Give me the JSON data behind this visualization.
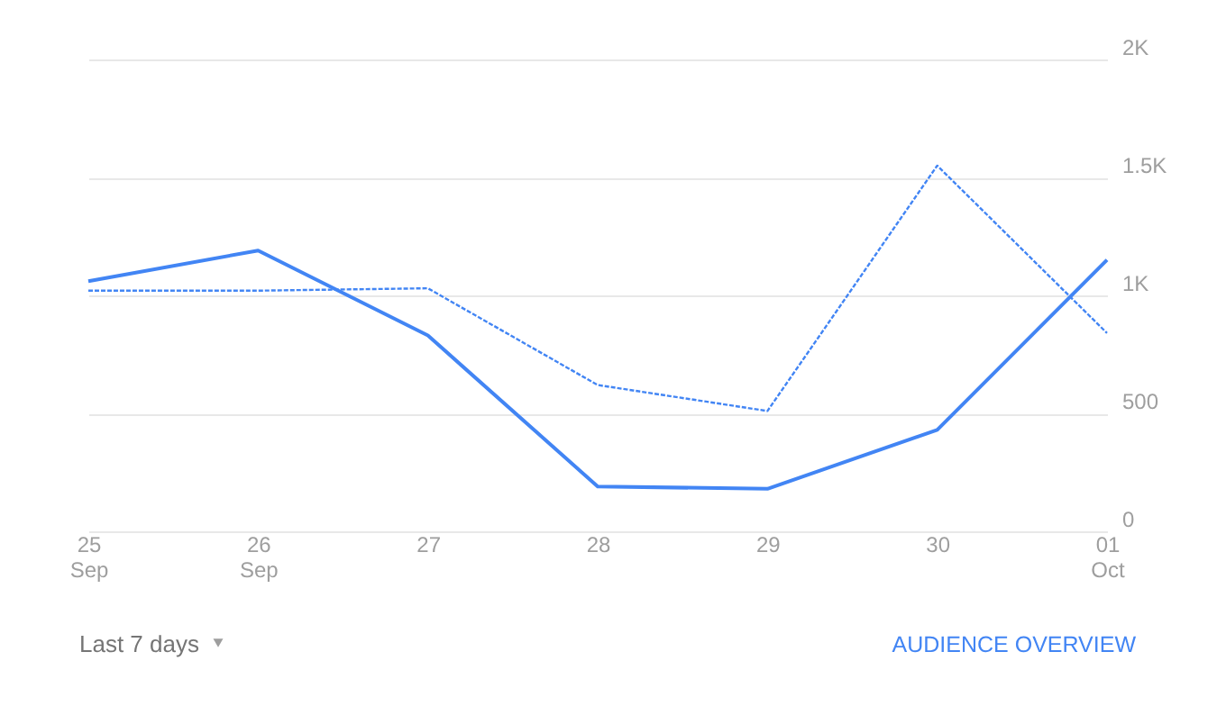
{
  "chart_data": {
    "type": "line",
    "categories": [
      "25\nSep",
      "26\nSep",
      "27",
      "28",
      "29",
      "30",
      "01\nOct"
    ],
    "series": [
      {
        "color": "#4285f4",
        "line_style": "solid",
        "values": [
          1060,
          1190,
          830,
          190,
          180,
          430,
          1150
        ]
      },
      {
        "color": "#4285f4",
        "line_style": "dashed",
        "values": [
          1020,
          1020,
          1030,
          620,
          510,
          1550,
          840
        ]
      }
    ],
    "ylim": [
      0,
      2000
    ],
    "yticks": [
      0,
      500,
      {
        "value": 1000,
        "label": "1K"
      },
      {
        "value": 1500,
        "label": "1.5K"
      },
      {
        "value": 2000,
        "label": "2K"
      }
    ],
    "grid": "y",
    "marker": "none",
    "annotations": [
      "Last 7 days",
      "AUDIENCE OVERVIEW"
    ]
  }
}
